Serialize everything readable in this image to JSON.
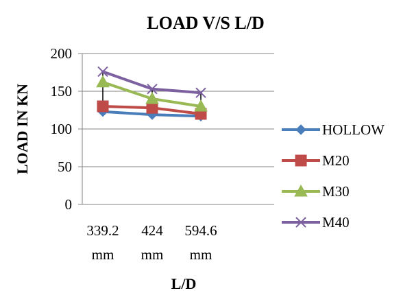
{
  "chart_data": {
    "type": "line",
    "title": "LOAD V/S L/D",
    "xlabel": "L/D",
    "ylabel": "LOAD IN KN",
    "categories": [
      {
        "value": "339.2",
        "unit": "mm"
      },
      {
        "value": "424",
        "unit": "mm"
      },
      {
        "value": "594.6",
        "unit": "mm"
      }
    ],
    "ylim": [
      0,
      200
    ],
    "yticks": [
      0,
      50,
      100,
      150,
      200
    ],
    "grid": "horizontal",
    "legend_position": "right",
    "high_low_lines": true,
    "series": [
      {
        "name": "HOLLOW",
        "color": "#4a7ebb",
        "marker": "diamond",
        "values": [
          123,
          119,
          117
        ]
      },
      {
        "name": "M20",
        "color": "#be4b48",
        "marker": "square",
        "values": [
          130,
          128,
          120
        ]
      },
      {
        "name": "M30",
        "color": "#98b954",
        "marker": "triangle",
        "values": [
          162,
          140,
          130
        ]
      },
      {
        "name": "M40",
        "color": "#7d60a0",
        "marker": "cross",
        "values": [
          176,
          153,
          148
        ]
      }
    ]
  }
}
